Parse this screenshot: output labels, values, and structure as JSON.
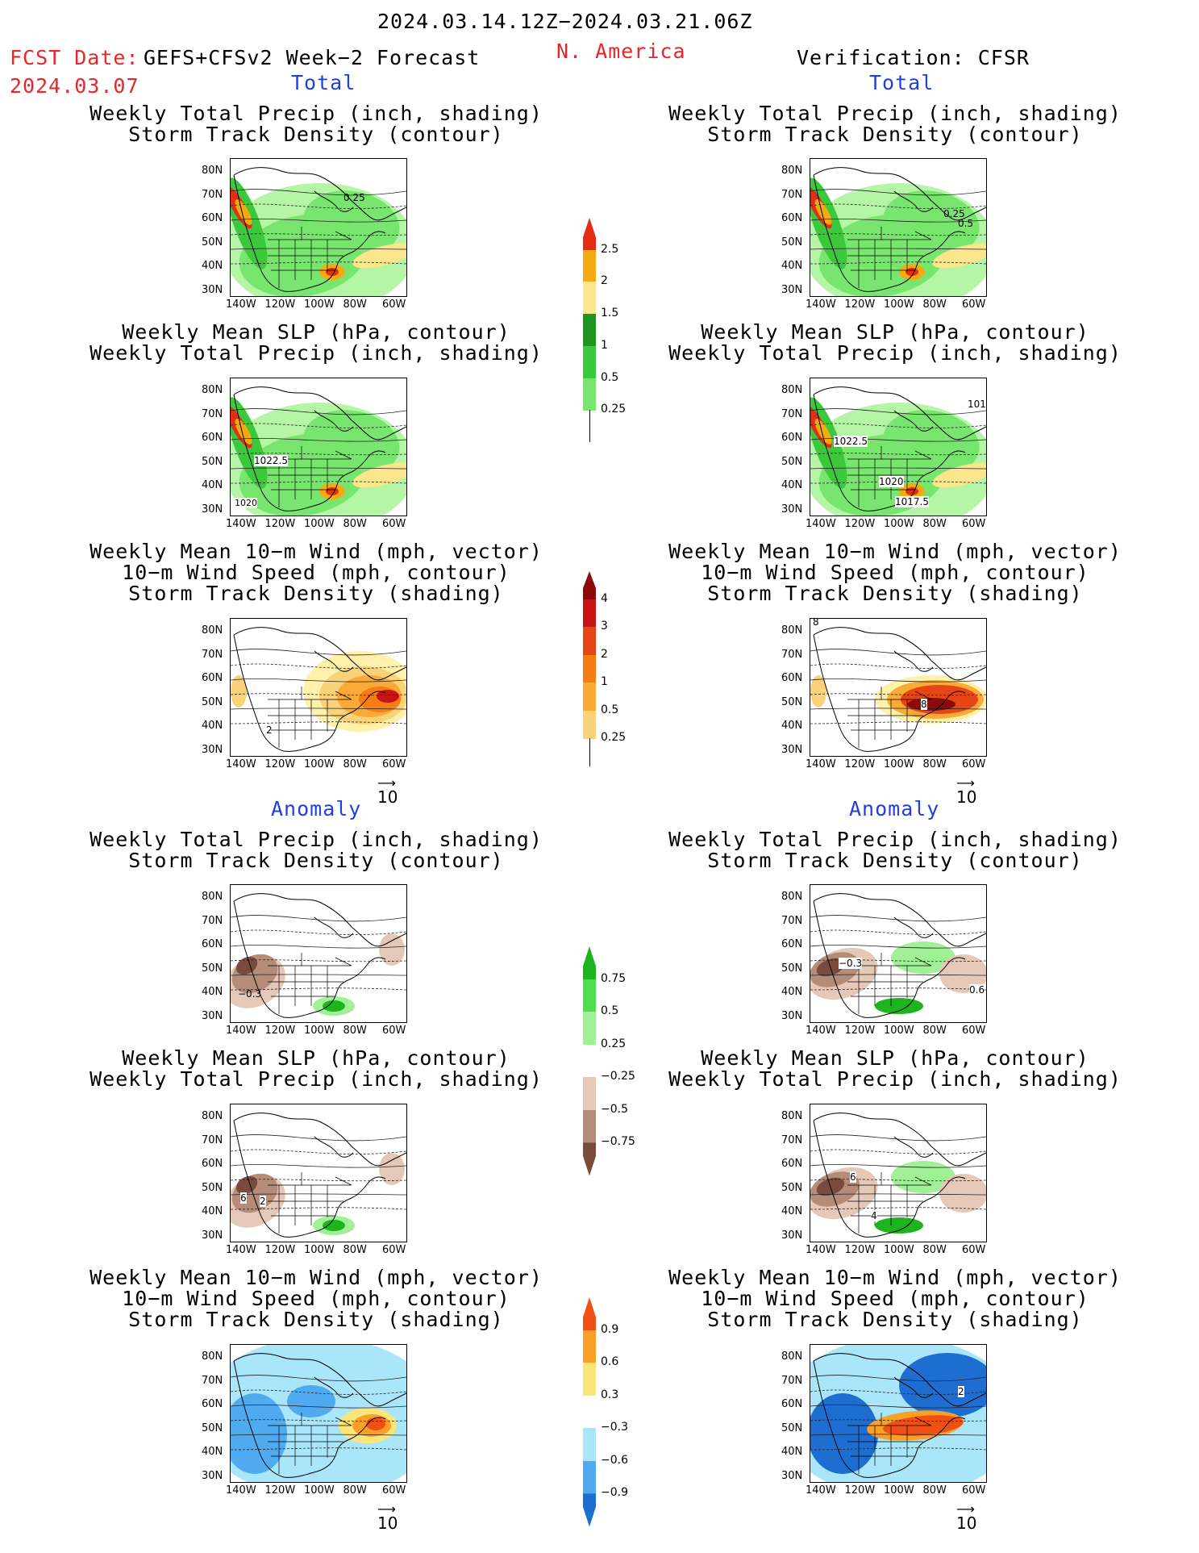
{
  "header": {
    "date_range": "2024.03.14.12Z−2024.03.21.06Z",
    "region": "N. America",
    "fcst_label": "FCST Date:",
    "fcst_model": "GEFS+CFSv2 Week−2 Forecast",
    "fcst_date": "2024.03.07",
    "verification": "Verification: CFSR",
    "left_total": "Total",
    "right_total": "Total",
    "left_anomaly": "Anomaly",
    "right_anomaly": "Anomaly"
  },
  "titles": {
    "precip_storm": [
      "Weekly Total Precip (inch, shading)",
      "Storm Track Density (contour)"
    ],
    "slp_precip": [
      "Weekly Mean SLP (hPa, contour)",
      "Weekly Total Precip (inch, shading)"
    ],
    "wind_storm": [
      "Weekly Mean 10−m Wind (mph, vector)",
      "10−m Wind Speed (mph, contour)",
      "Storm Track Density (shading)"
    ]
  },
  "axes": {
    "lat_labels": [
      "80N",
      "70N",
      "60N",
      "50N",
      "40N",
      "30N"
    ],
    "lon_labels": [
      "140W",
      "120W",
      "100W",
      "80W",
      "60W"
    ]
  },
  "vector_ref": "10",
  "contour_labels": {
    "p1_left": "0.25",
    "p1_right_a": "0.25",
    "p1_right_b": "0.5",
    "p2_left_a": "1022.5",
    "p2_left_b": "1020",
    "p2_right_a": "1022.5",
    "p2_right_b": "1020",
    "p2_right_c": "1017.5",
    "p2_right_d": "101",
    "p3_left": "2",
    "p3_right_a": "8",
    "p3_right_b": "8",
    "a1_left": "−0.3",
    "a1_right_a": "−0.3",
    "a1_right_b": "0.6",
    "a2_left_a": "6",
    "a2_left_b": "2",
    "a2_right_a": "6",
    "a2_right_b": "4",
    "a3_right": "2"
  },
  "colorbars": {
    "precip_total": {
      "labels": [
        "0.25",
        "0.5",
        "1",
        "1.5",
        "2",
        "2.5"
      ],
      "colors": [
        "#b4f5a6",
        "#78e66e",
        "#3cc83c",
        "#1e961e",
        "#fae68c",
        "#f5aa14",
        "#e62d14"
      ]
    },
    "storm_total": {
      "labels": [
        "0.25",
        "0.5",
        "1",
        "2",
        "3",
        "4"
      ],
      "colors": [
        "#fff0aa",
        "#fad278",
        "#faaa37",
        "#f57d14",
        "#e64614",
        "#c81414",
        "#8c0a0a"
      ]
    },
    "precip_anom": {
      "labels": [
        "0.75",
        "0.5",
        "0.25",
        "−0.25",
        "−0.5",
        "−0.75"
      ],
      "colors": [
        "#1eb41e",
        "#50dc50",
        "#a0f096",
        "#ffffff",
        "#e6c8b9",
        "#b48c78",
        "#784b3c"
      ]
    },
    "storm_anom": {
      "labels": [
        "0.9",
        "0.6",
        "0.3",
        "−0.3",
        "−0.6",
        "−0.9"
      ],
      "colors": [
        "#f05014",
        "#faa028",
        "#fae678",
        "#ffffff",
        "#aae6fa",
        "#50aaf0",
        "#1e6ed2"
      ]
    }
  }
}
